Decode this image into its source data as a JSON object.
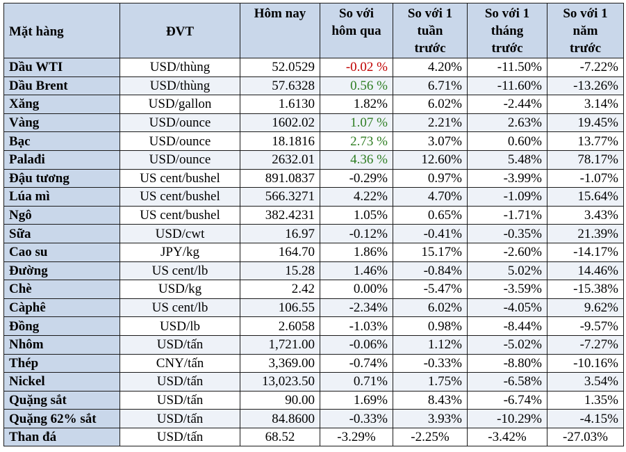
{
  "headers": [
    "Mặt hàng",
    "ĐVT",
    "Hôm nay",
    "So với hôm qua",
    "So với 1 tuần trước",
    "So với 1 tháng trước",
    "So với 1 năm trước"
  ],
  "colors": {
    "header_bg": "#c9d7ea",
    "negative": "#c00000",
    "positive": "#2e7d22"
  },
  "rows": [
    {
      "name": "Dầu WTI",
      "unit": "USD/thùng",
      "today": "52.0529",
      "d1": "-0.02 %",
      "w1": "4.20%",
      "m1": "-11.50%",
      "y1": "-7.22%",
      "d1_color": "red"
    },
    {
      "name": "Dầu Brent",
      "unit": "USD/thùng",
      "today": "57.6328",
      "d1": "0.56 %",
      "w1": "6.71%",
      "m1": "-11.60%",
      "y1": "-13.26%",
      "d1_color": "green"
    },
    {
      "name": "Xăng",
      "unit": "USD/gallon",
      "today": "1.6130",
      "d1": "1.82%",
      "w1": "6.02%",
      "m1": "-2.44%",
      "y1": "3.14%"
    },
    {
      "name": "Vàng",
      "unit": "USD/ounce",
      "today": "1602.02",
      "d1": "1.07 %",
      "w1": "2.21%",
      "m1": "2.63%",
      "y1": "19.45%",
      "d1_color": "green"
    },
    {
      "name": "Bạc",
      "unit": "USD/ounce",
      "today": "18.1816",
      "d1": "2.73 %",
      "w1": "3.07%",
      "m1": "0.60%",
      "y1": "13.77%",
      "d1_color": "green"
    },
    {
      "name": "Palađi",
      "unit": "USD/ounce",
      "today": "2632.01",
      "d1": "4.36 %",
      "w1": "12.60%",
      "m1": "5.48%",
      "y1": "78.17%",
      "d1_color": "green"
    },
    {
      "name": "Đậu tương",
      "unit": "US cent/bushel",
      "today": "891.0837",
      "d1": "-0.29%",
      "w1": "0.97%",
      "m1": "-3.99%",
      "y1": "-1.07%"
    },
    {
      "name": "Lúa mì",
      "unit": "US cent/bushel",
      "today": "566.3271",
      "d1": "4.22%",
      "w1": "4.70%",
      "m1": "-1.09%",
      "y1": "15.64%"
    },
    {
      "name": "Ngô",
      "unit": "US cent/bushel",
      "today": "382.4231",
      "d1": "1.05%",
      "w1": "0.65%",
      "m1": "-1.71%",
      "y1": "3.43%"
    },
    {
      "name": "Sữa",
      "unit": "USD/cwt",
      "today": "16.97",
      "d1": "-0.12%",
      "w1": "-0.41%",
      "m1": "-0.35%",
      "y1": "21.39%"
    },
    {
      "name": "Cao su",
      "unit": "JPY/kg",
      "today": "164.70",
      "d1": "1.86%",
      "w1": "15.17%",
      "m1": "-2.60%",
      "y1": "-14.17%"
    },
    {
      "name": "Đường",
      "unit": "US cent/lb",
      "today": "15.28",
      "d1": "1.46%",
      "w1": "-0.84%",
      "m1": "5.02%",
      "y1": "14.46%"
    },
    {
      "name": "Chè",
      "unit": "USD/kg",
      "today": "2.42",
      "d1": "0.00%",
      "w1": "-5.47%",
      "m1": "-3.59%",
      "y1": "-15.38%"
    },
    {
      "name": "Càphê",
      "unit": "US cent/lb",
      "today": "106.55",
      "d1": "-2.34%",
      "w1": "6.02%",
      "m1": "-4.05%",
      "y1": "9.62%"
    },
    {
      "name": "Đồng",
      "unit": "USD/lb",
      "today": "2.6058",
      "d1": "-1.03%",
      "w1": "0.98%",
      "m1": "-8.44%",
      "y1": "-9.57%"
    },
    {
      "name": "Nhôm",
      "unit": "USD/tấn",
      "today": "1,721.00",
      "d1": "-0.06%",
      "w1": "1.12%",
      "m1": "-5.02%",
      "y1": "-7.27%"
    },
    {
      "name": "Thép",
      "unit": "CNY/tấn",
      "today": "3,369.00",
      "d1": "-0.74%",
      "w1": "-0.33%",
      "m1": "-8.80%",
      "y1": "-10.16%"
    },
    {
      "name": "Nickel",
      "unit": "USD/tấn",
      "today": "13,023.50",
      "d1": "0.71%",
      "w1": "1.75%",
      "m1": "-6.58%",
      "y1": "3.54%"
    },
    {
      "name": "Quặng sắt",
      "unit": "USD/tấn",
      "today": "90.00",
      "d1": "1.69%",
      "w1": "8.43%",
      "m1": "-6.74%",
      "y1": "1.35%"
    },
    {
      "name": "Quặng 62% sắt",
      "unit": "USD/tấn",
      "today": "84.8600",
      "d1": "-0.33%",
      "w1": "3.93%",
      "m1": "-10.29%",
      "y1": "-4.15%"
    },
    {
      "name": "Than đá",
      "unit": "USD/tấn",
      "today": "68.52",
      "d1": "-3.29%",
      "w1": "-2.25%",
      "m1": "-3.42%",
      "y1": "-27.03%"
    }
  ]
}
